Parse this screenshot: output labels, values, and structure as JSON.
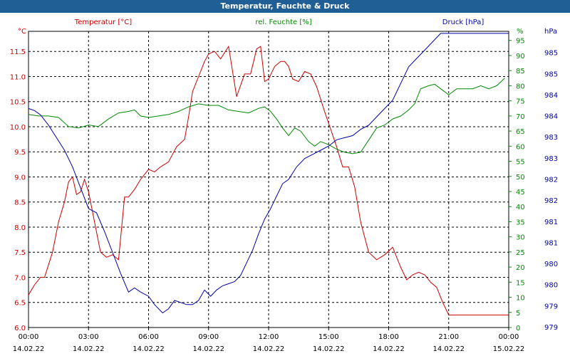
{
  "window": {
    "title": "Temperatur, Feuchte & Druck"
  },
  "colors": {
    "temperature": "#cc0000",
    "humidity": "#008800",
    "pressure": "#0000aa",
    "grid": "#000000",
    "titlebar": "#1f5f96"
  },
  "chart_data": {
    "type": "line",
    "title": "Temperatur, Feuchte & Druck",
    "grid": true,
    "x_ticks": [
      {
        "time": "00:00",
        "date": "14.02.22"
      },
      {
        "time": "03:00",
        "date": "14.02.22"
      },
      {
        "time": "06:00",
        "date": "14.02.22"
      },
      {
        "time": "09:00",
        "date": "14.02.22"
      },
      {
        "time": "12:00",
        "date": "14.02.22"
      },
      {
        "time": "15:00",
        "date": "14.02.22"
      },
      {
        "time": "18:00",
        "date": "14.02.22"
      },
      {
        "time": "21:00",
        "date": "14.02.22"
      },
      {
        "time": "00:00",
        "date": "15.02.22"
      }
    ],
    "axes": {
      "temperature": {
        "label": "Temperatur [°C]",
        "unit": "°C",
        "ylim": [
          6.0,
          11.9
        ],
        "ticks": [
          "6.0",
          "6.5",
          "7.0",
          "7.5",
          "8.0",
          "8.5",
          "9.0",
          "9.5",
          "10.0",
          "10.5",
          "11.0",
          "11.5"
        ]
      },
      "humidity": {
        "label": "rel. Feuchte [%]",
        "unit": "%",
        "ylim": [
          0,
          98
        ],
        "ticks": [
          "0",
          "5",
          "10",
          "15",
          "20",
          "25",
          "30",
          "35",
          "40",
          "45",
          "50",
          "55",
          "60",
          "65",
          "70",
          "75",
          "80",
          "85",
          "90",
          "95"
        ]
      },
      "pressure": {
        "label": "Druck [hPa]",
        "unit": "hPa",
        "ylim": [
          978.5,
          985.6
        ],
        "ticks": [
          "979",
          "979",
          "980",
          "980",
          "981",
          "981",
          "982",
          "982",
          "983",
          "983",
          "984",
          "984",
          "985",
          "985"
        ]
      }
    },
    "series": [
      {
        "name": "Temperatur [°C]",
        "axis": "temperature",
        "x": [
          0,
          0.3,
          0.6,
          0.8,
          1.2,
          1.5,
          1.8,
          2.0,
          2.2,
          2.4,
          2.6,
          2.8,
          3.0,
          3.3,
          3.6,
          3.9,
          4.2,
          4.5,
          4.8,
          5.0,
          5.3,
          5.6,
          6.0,
          6.3,
          6.6,
          7.0,
          7.4,
          7.8,
          8.0,
          8.2,
          8.5,
          8.8,
          9.0,
          9.3,
          9.6,
          10.0,
          10.4,
          10.8,
          11.1,
          11.4,
          11.6,
          11.8,
          12.0,
          12.3,
          12.6,
          12.8,
          13.0,
          13.2,
          13.5,
          13.8,
          14.1,
          14.4,
          14.8,
          15.1,
          15.4,
          15.7,
          16.0,
          16.3,
          16.6,
          17.0,
          17.4,
          17.8,
          18.2,
          18.6,
          18.9,
          19.2,
          19.5,
          19.8,
          20.1,
          20.4,
          20.7,
          21.0,
          21.3,
          21.6,
          21.9,
          22.2,
          22.5,
          22.8,
          23.1,
          23.4,
          23.7,
          24.0
        ],
        "y": [
          6.65,
          6.85,
          7.0,
          7.0,
          7.5,
          8.1,
          8.5,
          8.9,
          9.0,
          8.65,
          8.7,
          8.95,
          8.7,
          8.1,
          7.5,
          7.4,
          7.45,
          7.35,
          8.6,
          8.6,
          8.75,
          8.95,
          9.15,
          9.1,
          9.2,
          9.3,
          9.6,
          9.75,
          10.2,
          10.7,
          11.0,
          11.3,
          11.45,
          11.5,
          11.35,
          11.6,
          10.6,
          11.05,
          11.05,
          11.55,
          11.6,
          10.9,
          10.95,
          11.2,
          11.3,
          11.3,
          11.2,
          10.95,
          10.9,
          11.1,
          11.05,
          10.8,
          10.3,
          9.95,
          9.6,
          9.2,
          9.2,
          8.8,
          8.1,
          7.5,
          7.35,
          7.45,
          7.6,
          7.2,
          6.95,
          7.05,
          7.1,
          7.05,
          6.9,
          6.8,
          6.5,
          6.25,
          6.25,
          6.25,
          6.25,
          6.25,
          6.25,
          6.25,
          6.25,
          6.25,
          6.25,
          6.25
        ]
      },
      {
        "name": "rel. Feuchte [%]",
        "axis": "humidity",
        "x": [
          0,
          0.5,
          1.0,
          1.5,
          2.0,
          2.5,
          3.0,
          3.5,
          4.0,
          4.5,
          5.0,
          5.3,
          5.6,
          6.0,
          6.5,
          7.0,
          7.5,
          8.0,
          8.5,
          9.0,
          9.5,
          10.0,
          10.5,
          11.0,
          11.5,
          11.8,
          12.1,
          12.4,
          12.7,
          13.0,
          13.3,
          13.6,
          14.0,
          14.3,
          14.6,
          15.0,
          15.4,
          15.8,
          16.2,
          16.6,
          17.0,
          17.4,
          17.8,
          18.2,
          18.6,
          19.0,
          19.3,
          19.6,
          20.0,
          20.3,
          20.6,
          21.0,
          21.4,
          21.8,
          22.2,
          22.6,
          23.0,
          23.4,
          23.8
        ],
        "y": [
          70.5,
          70,
          70,
          69.5,
          66.5,
          66,
          67,
          66.5,
          69,
          71,
          71.5,
          72,
          70,
          69.5,
          70,
          70.5,
          71.5,
          73,
          74,
          73.5,
          73.5,
          72,
          71.5,
          71,
          72.5,
          73,
          71.5,
          69,
          66,
          63.5,
          66,
          65,
          61.5,
          60,
          61.5,
          60.5,
          59,
          58,
          57.5,
          58,
          62,
          66,
          67,
          69,
          70,
          72,
          74,
          79,
          80,
          80.5,
          79,
          77,
          79,
          79,
          79,
          80,
          79,
          80,
          82.5
        ]
      },
      {
        "name": "Druck [hPa]",
        "axis": "pressure",
        "x": [
          0,
          0.3,
          0.6,
          1.0,
          1.4,
          1.8,
          2.2,
          2.6,
          3.0,
          3.4,
          3.8,
          4.2,
          4.6,
          5.0,
          5.3,
          5.6,
          6.0,
          6.3,
          6.7,
          7.0,
          7.3,
          7.6,
          7.9,
          8.2,
          8.5,
          8.8,
          9.1,
          9.4,
          9.7,
          10.0,
          10.3,
          10.6,
          10.9,
          11.2,
          11.5,
          11.8,
          12.1,
          12.4,
          12.7,
          13.0,
          13.4,
          13.8,
          14.2,
          14.6,
          15.0,
          15.4,
          15.8,
          16.2,
          16.6,
          17.0,
          17.4,
          17.8,
          18.2,
          18.6,
          19.0,
          19.4,
          19.8,
          20.2,
          20.6,
          21.0,
          21.4,
          21.8,
          22.2,
          22.6,
          23.0,
          23.4,
          23.8,
          24.0
        ],
        "y": [
          983.75,
          983.7,
          983.6,
          983.35,
          983.05,
          982.75,
          982.35,
          981.85,
          981.35,
          981.25,
          980.8,
          980.3,
          979.8,
          979.35,
          979.45,
          979.35,
          979.25,
          979.05,
          978.85,
          978.95,
          979.15,
          979.1,
          979.05,
          979.05,
          979.15,
          979.4,
          979.25,
          979.4,
          979.5,
          979.55,
          979.6,
          979.75,
          980.05,
          980.35,
          980.75,
          981.1,
          981.35,
          981.65,
          981.95,
          982.05,
          982.35,
          982.55,
          982.65,
          982.75,
          982.85,
          983.0,
          983.05,
          983.1,
          983.25,
          983.35,
          983.55,
          983.75,
          983.95,
          984.35,
          984.75,
          984.95,
          985.15,
          985.35,
          985.55,
          985.55,
          985.55,
          985.55,
          985.55,
          985.55,
          985.55,
          985.55,
          985.55,
          985.55
        ]
      }
    ]
  }
}
